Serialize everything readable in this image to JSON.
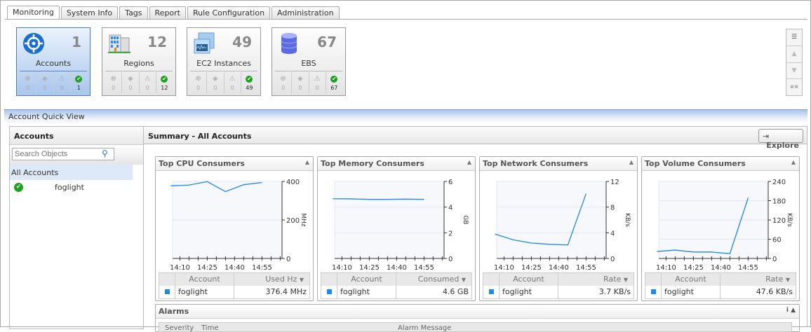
{
  "tabs": [
    "Monitoring",
    "System Info",
    "Tags",
    "Report",
    "Rule Configuration",
    "Administration"
  ],
  "active_tab": "Monitoring",
  "tiles": [
    {
      "label": "Accounts",
      "count": "1",
      "icon": "target-icon",
      "stats": [
        "0",
        "0",
        "0",
        "1"
      ],
      "selected": true
    },
    {
      "label": "Regions",
      "count": "12",
      "icon": "building-icon",
      "stats": [
        "0",
        "0",
        "0",
        "12"
      ]
    },
    {
      "label": "EC2 Instances",
      "count": "49",
      "icon": "monitor-icon",
      "stats": [
        "0",
        "0",
        "0",
        "49"
      ]
    },
    {
      "label": "EBS",
      "count": "67",
      "icon": "database-icon",
      "stats": [
        "0",
        "0",
        "0",
        "67"
      ]
    }
  ],
  "quick_view_title": "Account Quick View",
  "left": {
    "title": "Accounts",
    "search_placeholder": "Search Objects",
    "all_accounts": "All Accounts",
    "accounts": [
      {
        "name": "foglight",
        "status": "ok"
      }
    ]
  },
  "summary": {
    "title": "Summary - All Accounts",
    "explore_label": "Explore"
  },
  "chart_data": [
    {
      "type": "line",
      "title": "Top CPU Consumers",
      "ylabel": "MHz",
      "ylim": [
        0,
        400
      ],
      "yticks": [
        "0",
        "200",
        "400"
      ],
      "xticks": [
        "14:10",
        "14:25",
        "14:40",
        "14:55"
      ],
      "x": [
        "14:05",
        "14:15",
        "14:25",
        "14:35",
        "14:45",
        "14:55"
      ],
      "series": [
        {
          "values": [
            377,
            381,
            399,
            347,
            383,
            394
          ]
        }
      ],
      "table": {
        "headers": [
          "Account",
          "Used Hz"
        ],
        "rows": [
          [
            "foglight",
            "376.4 MHz"
          ]
        ]
      }
    },
    {
      "type": "line",
      "title": "Top Memory Consumers",
      "ylabel": "GB",
      "ylim": [
        0,
        6
      ],
      "yticks": [
        "0",
        "2",
        "4",
        "6"
      ],
      "xticks": [
        "14:10",
        "14:25",
        "14:40",
        "14:55"
      ],
      "x": [
        "14:05",
        "14:15",
        "14:25",
        "14:35",
        "14:45",
        "14:55"
      ],
      "series": [
        {
          "values": [
            4.65,
            4.64,
            4.6,
            4.6,
            4.62,
            4.6
          ]
        }
      ],
      "table": {
        "headers": [
          "Account",
          "Consumed"
        ],
        "rows": [
          [
            "foglight",
            "4.6 GB"
          ]
        ]
      }
    },
    {
      "type": "line",
      "title": "Top Network Consumers",
      "ylabel": "KB/s",
      "ylim": [
        0,
        12
      ],
      "yticks": [
        "0",
        "4",
        "8",
        "12"
      ],
      "xticks": [
        "14:10",
        "14:25",
        "14:40",
        "14:55"
      ],
      "x": [
        "14:05",
        "14:15",
        "14:25",
        "14:35",
        "14:45",
        "14:55"
      ],
      "series": [
        {
          "values": [
            3.8,
            2.9,
            2.4,
            2.2,
            2.1,
            10.1
          ]
        }
      ],
      "table": {
        "headers": [
          "Account",
          "Rate"
        ],
        "rows": [
          [
            "foglight",
            "3.7 KB/s"
          ]
        ]
      }
    },
    {
      "type": "line",
      "title": "Top Volume Consumers",
      "ylabel": "KB/s",
      "ylim": [
        0,
        240
      ],
      "yticks": [
        "0",
        "60",
        "120",
        "180",
        "240"
      ],
      "xticks": [
        "14:10",
        "14:25",
        "14:40",
        "14:55"
      ],
      "x": [
        "14:05",
        "14:15",
        "14:25",
        "14:35",
        "14:45",
        "14:55"
      ],
      "series": [
        {
          "values": [
            22,
            26,
            20,
            20,
            15,
            189
          ]
        }
      ],
      "table": {
        "headers": [
          "Account",
          "Rate"
        ],
        "rows": [
          [
            "foglight",
            "47.6 KB/s"
          ]
        ]
      }
    }
  ],
  "alarms": {
    "title": "Alarms",
    "columns": [
      "Severity",
      "Time",
      "Alarm Message"
    ]
  },
  "colors": {
    "series": "#1e88f0",
    "ok": "#1ca31c",
    "selected_tile": "#a9c6ec"
  }
}
